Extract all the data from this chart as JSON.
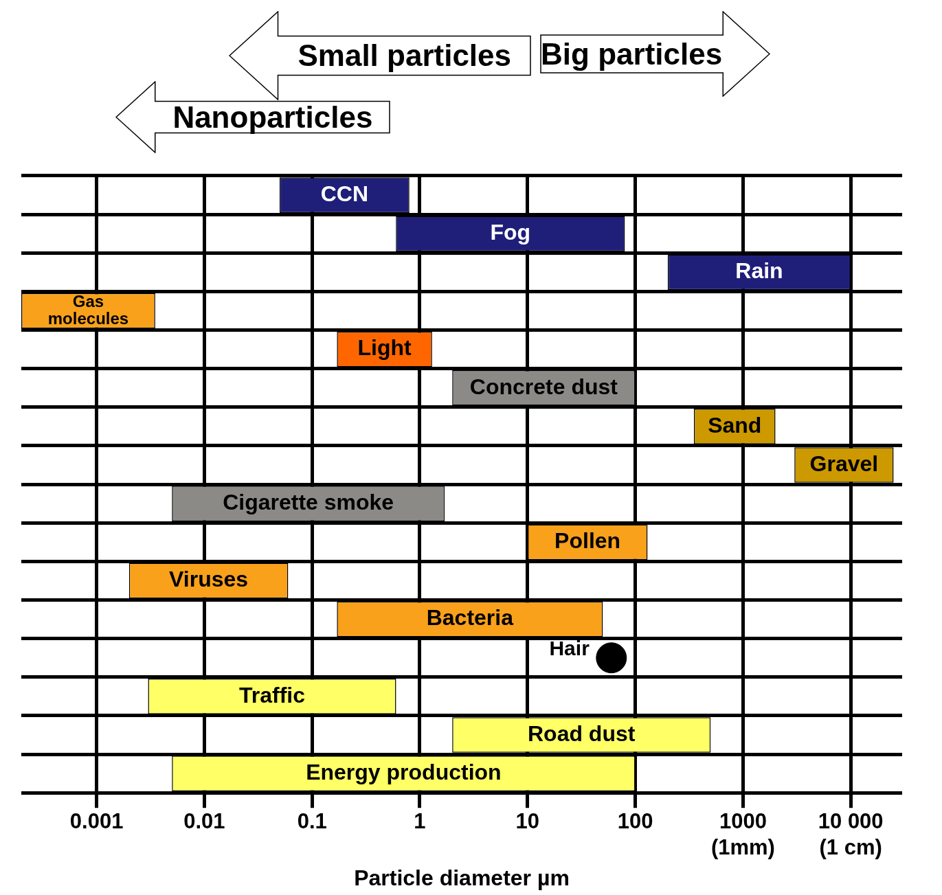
{
  "chart_data": {
    "type": "bar",
    "orientation": "horizontal",
    "xlabel": "Particle diameter µm",
    "log": "x",
    "xlim": [
      0.0002,
      30000
    ],
    "xticks": [
      {
        "value": 0.001,
        "label": "0.001"
      },
      {
        "value": 0.01,
        "label": "0.01"
      },
      {
        "value": 0.1,
        "label": "0.1"
      },
      1,
      10,
      100,
      {
        "value": 1000,
        "label": "1000\n(1mm)"
      },
      {
        "value": 10000,
        "label": "10 000\n(1 cm)"
      }
    ],
    "tick_labels": "x",
    "grid": true,
    "annotations": [
      "Nanoparticles",
      "Small particles",
      "Big particles"
    ],
    "categories": [
      "CCN",
      "Fog",
      "Rain",
      "Gas molecules",
      "Light",
      "Concrete dust",
      "Sand",
      "Gravel",
      "Cigarette smoke",
      "Pollen",
      "Viruses",
      "Bacteria",
      "Hair",
      "Traffic",
      "Road dust",
      "Energy production"
    ],
    "series": [
      {
        "type": "bar",
        "base": [
          0.05,
          0.6,
          200,
          0.0002,
          0.17,
          2,
          350,
          3000,
          0.005,
          10,
          0.002,
          0.17,
          null,
          0.003,
          2,
          0.005
        ],
        "values": [
          0.75,
          79.4,
          9800,
          0.0033,
          1.13,
          98,
          1650,
          22000,
          1.695,
          120,
          0.058,
          49.83,
          null,
          0.6,
          498,
          99.995
        ],
        "colors": [
          "#1f1f7a",
          "#1f1f7a",
          "#1f1f7a",
          "#f9a11b",
          "#ff6600",
          "#8c8a86",
          "#cc9900",
          "#cc9900",
          "#8c8a86",
          "#f9a11b",
          "#f9a11b",
          "#f9a11b",
          null,
          "#ffff66",
          "#ffff66",
          "#ffff66"
        ]
      },
      {
        "type": "scatter",
        "x": [
          "Hair"
        ],
        "values": [
          60
        ],
        "color": "#000000",
        "marker": "circle"
      }
    ]
  }
}
